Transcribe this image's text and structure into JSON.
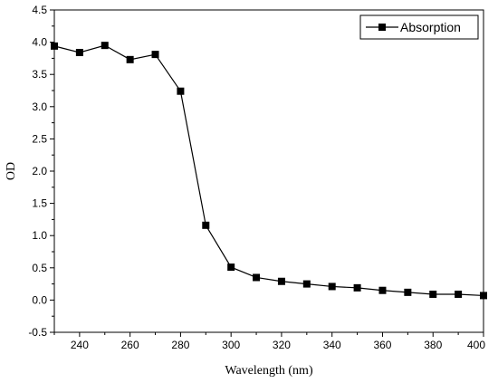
{
  "chart_data": {
    "type": "line",
    "title": "",
    "xlabel": "Wavelength (nm)",
    "ylabel": "OD",
    "xlim": [
      230,
      400
    ],
    "ylim": [
      -0.5,
      4.5
    ],
    "x_ticks": [
      240,
      260,
      280,
      300,
      320,
      340,
      360,
      380,
      400
    ],
    "x_tick_labels": [
      "240",
      "260",
      "280",
      "300",
      "320",
      "340",
      "360",
      "380",
      "400"
    ],
    "y_ticks": [
      -0.5,
      0.0,
      0.5,
      1.0,
      1.5,
      2.0,
      2.5,
      3.0,
      3.5,
      4.0,
      4.5
    ],
    "y_tick_labels": [
      "-0.5",
      "0.0",
      "0.5",
      "1.0",
      "1.5",
      "2.0",
      "2.5",
      "3.0",
      "3.5",
      "4.0",
      "4.5"
    ],
    "grid": false,
    "legend_position": "top-right",
    "series": [
      {
        "name": "Absorption",
        "color": "#000000",
        "marker": "square",
        "x": [
          230,
          240,
          250,
          260,
          270,
          280,
          290,
          300,
          310,
          320,
          330,
          340,
          350,
          360,
          370,
          380,
          390,
          400
        ],
        "y": [
          3.94,
          3.84,
          3.95,
          3.73,
          3.81,
          3.24,
          1.16,
          0.51,
          0.35,
          0.29,
          0.25,
          0.21,
          0.19,
          0.15,
          0.12,
          0.09,
          0.09,
          0.07
        ]
      }
    ]
  }
}
